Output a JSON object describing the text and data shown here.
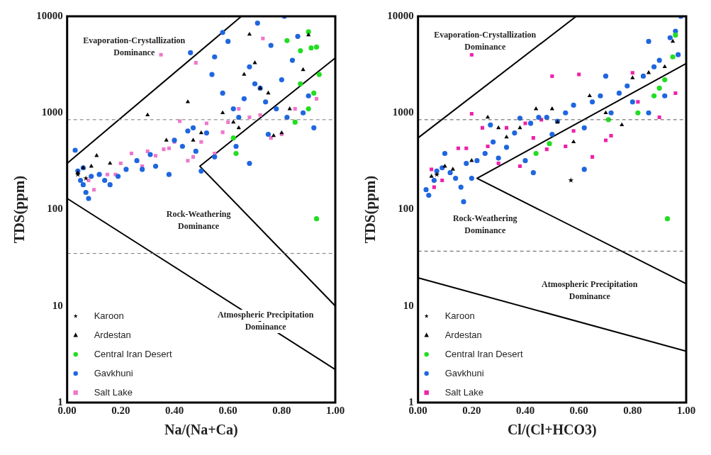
{
  "chart_data": [
    {
      "type": "scatter",
      "xlabel": "Na/(Na+Ca)",
      "ylabel": "TDS(ppm)",
      "log": "y",
      "xlim": [
        0,
        1
      ],
      "ylim": [
        1,
        10000
      ],
      "xticks": [
        {
          "value": 0,
          "label": "0.00"
        },
        {
          "value": 0.2,
          "label": "0.20"
        },
        {
          "value": 0.4,
          "label": "0.40"
        },
        {
          "value": 0.6,
          "label": "0.60"
        },
        {
          "value": 0.8,
          "label": "0.80"
        },
        {
          "value": 1,
          "label": "1.00"
        }
      ],
      "yticks": [
        1,
        10,
        100,
        1000,
        10000
      ],
      "legend": "bottom left",
      "grid": false,
      "ref_lines": [
        {
          "axis": "y",
          "value": 850,
          "color": "#777777",
          "line_style": "dashed"
        },
        {
          "axis": "y",
          "value": 35,
          "color": "#777777",
          "line_style": "dashed"
        }
      ],
      "annotations": [
        "Evaporation-Crystallization\nDominance",
        "Rock-Weathering\nDominance",
        "Atmospheric Precipitation\nDominance"
      ],
      "series": [
        {
          "type": "line",
          "color": "#000000",
          "marker": "none",
          "x": [
            0,
            0.65
          ],
          "values": [
            300,
            10000
          ]
        },
        {
          "type": "line",
          "color": "#000000",
          "marker": "none",
          "x": [
            1,
            0.495,
            1
          ],
          "values": [
            3700,
            280,
            10
          ]
        },
        {
          "type": "line",
          "color": "#000000",
          "marker": "none",
          "x": [
            0,
            1
          ],
          "values": [
            130,
            2.2
          ]
        },
        {
          "name": "Karoon",
          "color": "#000000",
          "marker": "star",
          "x": [
            0.04,
            0.07
          ],
          "values": [
            230,
            210
          ]
        },
        {
          "name": "Ardestan",
          "color": "#000000",
          "marker": "triangle",
          "x": [
            0.04,
            0.06,
            0.09,
            0.11,
            0.16,
            0.3,
            0.37,
            0.45,
            0.47,
            0.5,
            0.58,
            0.62,
            0.66,
            0.7,
            0.72,
            0.75,
            0.68,
            0.8,
            0.77,
            0.83,
            0.88,
            0.9,
            0.64
          ],
          "values": [
            240,
            270,
            280,
            360,
            300,
            950,
            520,
            1300,
            520,
            620,
            1000,
            800,
            2500,
            3300,
            1800,
            1600,
            6500,
            620,
            580,
            1100,
            2800,
            6400,
            700
          ]
        },
        {
          "name": "Central Iran Desert",
          "color": "#22dd22",
          "marker": "circle",
          "x": [
            0.82,
            0.87,
            0.9,
            0.91,
            0.93,
            0.94,
            0.92,
            0.9,
            0.85,
            0.62,
            0.63,
            0.93,
            0.87
          ],
          "values": [
            5600,
            4400,
            6900,
            4700,
            4800,
            2500,
            1600,
            1100,
            800,
            550,
            380,
            80,
            2000
          ]
        },
        {
          "name": "Gavkhuni",
          "color": "#1f66e0",
          "marker": "circle",
          "x": [
            0.03,
            0.04,
            0.05,
            0.06,
            0.07,
            0.08,
            0.06,
            0.09,
            0.12,
            0.14,
            0.16,
            0.19,
            0.22,
            0.26,
            0.28,
            0.31,
            0.33,
            0.38,
            0.4,
            0.43,
            0.45,
            0.47,
            0.48,
            0.52,
            0.55,
            0.5,
            0.6,
            0.55,
            0.46,
            0.54,
            0.58,
            0.62,
            0.64,
            0.66,
            0.68,
            0.7,
            0.72,
            0.74,
            0.76,
            0.78,
            0.8,
            0.82,
            0.84,
            0.86,
            0.88,
            0.9,
            0.92,
            0.81,
            0.71,
            0.63,
            0.68,
            0.75,
            0.58
          ],
          "values": [
            410,
            250,
            200,
            180,
            150,
            130,
            270,
            220,
            230,
            200,
            180,
            220,
            260,
            320,
            260,
            370,
            280,
            230,
            520,
            450,
            650,
            700,
            400,
            620,
            350,
            250,
            5500,
            3800,
            4200,
            2500,
            1600,
            1100,
            900,
            1400,
            3000,
            2000,
            1800,
            1300,
            5000,
            1100,
            2200,
            900,
            3500,
            6200,
            1000,
            1500,
            700,
            10000,
            8500,
            450,
            300,
            600,
            6800
          ]
        },
        {
          "name": "Salt Lake",
          "color": "#ee77cc",
          "marker": "square",
          "x": [
            0.08,
            0.1,
            0.15,
            0.18,
            0.2,
            0.24,
            0.28,
            0.3,
            0.33,
            0.36,
            0.38,
            0.4,
            0.42,
            0.45,
            0.47,
            0.5,
            0.52,
            0.55,
            0.58,
            0.6,
            0.64,
            0.68,
            0.72,
            0.76,
            0.8,
            0.85,
            0.35,
            0.48,
            0.73,
            0.93
          ],
          "values": [
            200,
            160,
            230,
            230,
            300,
            380,
            280,
            400,
            360,
            420,
            430,
            500,
            820,
            320,
            350,
            500,
            780,
            380,
            630,
            800,
            1100,
            900,
            950,
            550,
            600,
            1100,
            4000,
            3300,
            5900,
            1400
          ]
        }
      ]
    },
    {
      "type": "scatter",
      "xlabel": "Cl/(Cl+HCO3)",
      "ylabel": "TDS(ppm)",
      "log": "y",
      "xlim": [
        0,
        1
      ],
      "ylim": [
        1,
        10000
      ],
      "xticks": [
        {
          "value": 0,
          "label": "0.00"
        },
        {
          "value": 0.2,
          "label": "0.20"
        },
        {
          "value": 0.4,
          "label": "0.40"
        },
        {
          "value": 0.6,
          "label": "0.60"
        },
        {
          "value": 0.8,
          "label": "0.80"
        },
        {
          "value": 1,
          "label": "1.00"
        }
      ],
      "yticks": [
        1,
        10,
        100,
        1000,
        10000
      ],
      "legend": "bottom left",
      "grid": false,
      "ref_lines": [
        {
          "axis": "y",
          "value": 850,
          "color": "#555555",
          "line_style": "dashed"
        },
        {
          "axis": "y",
          "value": 37,
          "color": "#555555",
          "line_style": "dashed"
        }
      ],
      "annotations": [
        "Evaporation-Crystallization\nDominance",
        "Rock-Weathering\nDominance",
        "Atmospheric Precipitation\nDominance"
      ],
      "series": [
        {
          "type": "line",
          "color": "#000000",
          "marker": "none",
          "x": [
            0,
            0.59
          ],
          "values": [
            550,
            10000
          ]
        },
        {
          "type": "line",
          "color": "#000000",
          "marker": "none",
          "x": [
            1,
            0.22,
            1
          ],
          "values": [
            3250,
            210,
            17
          ]
        },
        {
          "type": "line",
          "color": "#000000",
          "marker": "none",
          "x": [
            0,
            1
          ],
          "values": [
            19.6,
            3.4
          ]
        },
        {
          "name": "Karoon",
          "color": "#000000",
          "marker": "star",
          "x": [
            0.07,
            0.57
          ],
          "values": [
            230,
            200
          ]
        },
        {
          "name": "Ardestan",
          "color": "#000000",
          "marker": "triangle",
          "x": [
            0.05,
            0.1,
            0.13,
            0.2,
            0.26,
            0.3,
            0.33,
            0.38,
            0.44,
            0.5,
            0.52,
            0.58,
            0.64,
            0.7,
            0.76,
            0.8,
            0.86,
            0.92,
            0.95
          ],
          "values": [
            220,
            280,
            260,
            320,
            900,
            700,
            560,
            700,
            1100,
            1100,
            800,
            500,
            1500,
            1000,
            750,
            2300,
            2600,
            3000,
            5500
          ]
        },
        {
          "name": "Central Iran Desert",
          "color": "#22dd22",
          "marker": "circle",
          "x": [
            0.44,
            0.49,
            0.71,
            0.82,
            0.88,
            0.9,
            0.92,
            0.95,
            0.96,
            0.93
          ],
          "values": [
            380,
            480,
            850,
            1000,
            1500,
            1800,
            2200,
            3800,
            6400,
            80
          ]
        },
        {
          "name": "Gavkhuni",
          "color": "#1f66e0",
          "marker": "circle",
          "x": [
            0.03,
            0.04,
            0.06,
            0.07,
            0.09,
            0.1,
            0.12,
            0.14,
            0.16,
            0.17,
            0.18,
            0.2,
            0.22,
            0.25,
            0.27,
            0.28,
            0.3,
            0.33,
            0.36,
            0.38,
            0.4,
            0.42,
            0.45,
            0.48,
            0.5,
            0.52,
            0.55,
            0.58,
            0.62,
            0.62,
            0.65,
            0.68,
            0.7,
            0.72,
            0.75,
            0.78,
            0.8,
            0.84,
            0.86,
            0.88,
            0.9,
            0.92,
            0.94,
            0.96,
            0.98,
            0.97,
            0.43,
            0.86
          ],
          "values": [
            160,
            140,
            200,
            250,
            270,
            380,
            240,
            210,
            170,
            120,
            300,
            210,
            320,
            380,
            750,
            500,
            340,
            440,
            620,
            880,
            320,
            780,
            900,
            900,
            600,
            820,
            1000,
            1200,
            700,
            260,
            1300,
            1500,
            2400,
            1000,
            1600,
            1900,
            1300,
            2400,
            5500,
            3000,
            3500,
            1500,
            6000,
            7000,
            10000,
            4000,
            240,
            1000
          ]
        },
        {
          "name": "Salt Lake",
          "color": "#ee22aa",
          "marker": "square",
          "x": [
            0.05,
            0.06,
            0.09,
            0.15,
            0.18,
            0.2,
            0.2,
            0.24,
            0.26,
            0.3,
            0.33,
            0.38,
            0.4,
            0.43,
            0.46,
            0.5,
            0.55,
            0.58,
            0.6,
            0.65,
            0.7,
            0.72,
            0.8,
            0.82,
            0.9,
            0.96,
            0.48
          ],
          "values": [
            260,
            170,
            200,
            430,
            430,
            4000,
            980,
            700,
            450,
            300,
            700,
            280,
            780,
            550,
            850,
            2400,
            450,
            650,
            2500,
            350,
            520,
            580,
            2600,
            1300,
            900,
            1600,
            420
          ]
        }
      ]
    }
  ]
}
